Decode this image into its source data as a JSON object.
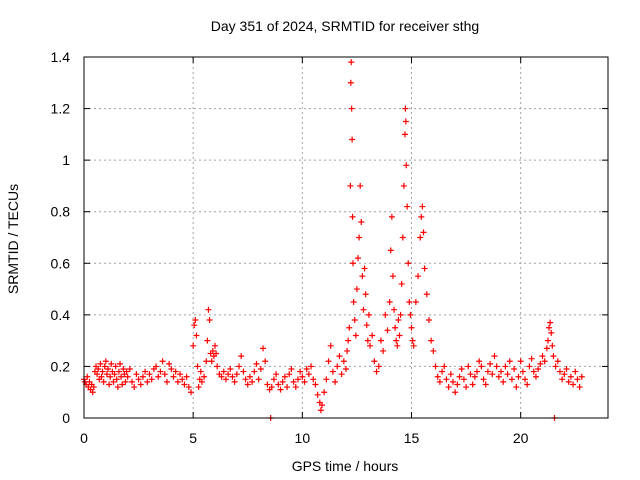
{
  "chart_data": {
    "type": "scatter",
    "title": "Day 351 of 2024, SRMTID for receiver sthg",
    "xlabel": "GPS time / hours",
    "ylabel": "SRMTID / TECUs",
    "xlim": [
      0,
      24
    ],
    "ylim": [
      0,
      1.4
    ],
    "x_ticks": [
      0,
      5,
      10,
      15,
      20
    ],
    "x_tick_labels": [
      "0",
      "5",
      "10",
      "15",
      "20"
    ],
    "y_ticks": [
      0,
      0.2,
      0.4,
      0.6,
      0.8,
      1.0,
      1.2,
      1.4
    ],
    "y_tick_labels": [
      "0",
      "0.2",
      "0.4",
      "0.6",
      "0.8",
      "1",
      "1.2",
      "1.4"
    ],
    "grid": true,
    "marker": "+",
    "series_color": "#ff0000",
    "series": [
      {
        "name": "SRMTID",
        "points": [
          [
            0.0,
            0.15
          ],
          [
            0.05,
            0.14
          ],
          [
            0.1,
            0.13
          ],
          [
            0.15,
            0.16
          ],
          [
            0.2,
            0.12
          ],
          [
            0.25,
            0.14
          ],
          [
            0.3,
            0.11
          ],
          [
            0.35,
            0.13
          ],
          [
            0.4,
            0.1
          ],
          [
            0.45,
            0.12
          ],
          [
            0.5,
            0.18
          ],
          [
            0.55,
            0.2
          ],
          [
            0.6,
            0.17
          ],
          [
            0.65,
            0.19
          ],
          [
            0.7,
            0.15
          ],
          [
            0.75,
            0.21
          ],
          [
            0.8,
            0.16
          ],
          [
            0.85,
            0.18
          ],
          [
            0.9,
            0.14
          ],
          [
            0.95,
            0.2
          ],
          [
            1.0,
            0.22
          ],
          [
            1.05,
            0.17
          ],
          [
            1.1,
            0.19
          ],
          [
            1.15,
            0.13
          ],
          [
            1.2,
            0.16
          ],
          [
            1.25,
            0.21
          ],
          [
            1.3,
            0.18
          ],
          [
            1.35,
            0.14
          ],
          [
            1.4,
            0.17
          ],
          [
            1.45,
            0.2
          ],
          [
            1.5,
            0.15
          ],
          [
            1.55,
            0.12
          ],
          [
            1.6,
            0.18
          ],
          [
            1.65,
            0.21
          ],
          [
            1.7,
            0.16
          ],
          [
            1.75,
            0.13
          ],
          [
            1.8,
            0.19
          ],
          [
            1.85,
            0.17
          ],
          [
            1.9,
            0.14
          ],
          [
            1.95,
            0.18
          ],
          [
            2.0,
            0.16
          ],
          [
            2.1,
            0.19
          ],
          [
            2.2,
            0.14
          ],
          [
            2.3,
            0.12
          ],
          [
            2.4,
            0.17
          ],
          [
            2.5,
            0.15
          ],
          [
            2.6,
            0.13
          ],
          [
            2.7,
            0.16
          ],
          [
            2.8,
            0.18
          ],
          [
            2.9,
            0.14
          ],
          [
            3.0,
            0.17
          ],
          [
            3.1,
            0.15
          ],
          [
            3.2,
            0.19
          ],
          [
            3.3,
            0.2
          ],
          [
            3.4,
            0.16
          ],
          [
            3.5,
            0.18
          ],
          [
            3.6,
            0.22
          ],
          [
            3.7,
            0.17
          ],
          [
            3.8,
            0.14
          ],
          [
            3.9,
            0.21
          ],
          [
            4.0,
            0.19
          ],
          [
            4.1,
            0.16
          ],
          [
            4.2,
            0.18
          ],
          [
            4.3,
            0.14
          ],
          [
            4.4,
            0.17
          ],
          [
            4.5,
            0.15
          ],
          [
            4.6,
            0.13
          ],
          [
            4.7,
            0.16
          ],
          [
            4.8,
            0.12
          ],
          [
            4.9,
            0.1
          ],
          [
            5.0,
            0.28
          ],
          [
            5.05,
            0.36
          ],
          [
            5.1,
            0.38
          ],
          [
            5.15,
            0.32
          ],
          [
            5.2,
            0.2
          ],
          [
            5.25,
            0.12
          ],
          [
            5.3,
            0.15
          ],
          [
            5.35,
            0.18
          ],
          [
            5.4,
            0.14
          ],
          [
            5.5,
            0.16
          ],
          [
            5.6,
            0.22
          ],
          [
            5.65,
            0.3
          ],
          [
            5.7,
            0.42
          ],
          [
            5.75,
            0.38
          ],
          [
            5.8,
            0.25
          ],
          [
            5.85,
            0.22
          ],
          [
            5.9,
            0.26
          ],
          [
            5.95,
            0.24
          ],
          [
            6.0,
            0.28
          ],
          [
            6.05,
            0.25
          ],
          [
            6.1,
            0.2
          ],
          [
            6.2,
            0.17
          ],
          [
            6.3,
            0.16
          ],
          [
            6.4,
            0.18
          ],
          [
            6.5,
            0.15
          ],
          [
            6.6,
            0.17
          ],
          [
            6.7,
            0.19
          ],
          [
            6.8,
            0.16
          ],
          [
            6.9,
            0.14
          ],
          [
            7.0,
            0.17
          ],
          [
            7.1,
            0.2
          ],
          [
            7.2,
            0.24
          ],
          [
            7.3,
            0.18
          ],
          [
            7.4,
            0.15
          ],
          [
            7.5,
            0.13
          ],
          [
            7.6,
            0.16
          ],
          [
            7.7,
            0.14
          ],
          [
            7.8,
            0.18
          ],
          [
            7.9,
            0.21
          ],
          [
            8.0,
            0.15
          ],
          [
            8.1,
            0.19
          ],
          [
            8.2,
            0.27
          ],
          [
            8.3,
            0.22
          ],
          [
            8.4,
            0.13
          ],
          [
            8.5,
            0.11
          ],
          [
            8.55,
            0.0
          ],
          [
            8.6,
            0.12
          ],
          [
            8.7,
            0.15
          ],
          [
            8.8,
            0.17
          ],
          [
            8.9,
            0.13
          ],
          [
            9.0,
            0.11
          ],
          [
            9.1,
            0.14
          ],
          [
            9.2,
            0.16
          ],
          [
            9.3,
            0.12
          ],
          [
            9.4,
            0.17
          ],
          [
            9.5,
            0.19
          ],
          [
            9.6,
            0.14
          ],
          [
            9.7,
            0.12
          ],
          [
            9.8,
            0.15
          ],
          [
            9.9,
            0.18
          ],
          [
            10.0,
            0.16
          ],
          [
            10.1,
            0.14
          ],
          [
            10.2,
            0.19
          ],
          [
            10.3,
            0.17
          ],
          [
            10.4,
            0.2
          ],
          [
            10.5,
            0.15
          ],
          [
            10.6,
            0.13
          ],
          [
            10.7,
            0.09
          ],
          [
            10.8,
            0.06
          ],
          [
            10.85,
            0.03
          ],
          [
            10.9,
            0.05
          ],
          [
            11.0,
            0.1
          ],
          [
            11.1,
            0.15
          ],
          [
            11.2,
            0.22
          ],
          [
            11.3,
            0.28
          ],
          [
            11.4,
            0.18
          ],
          [
            11.5,
            0.14
          ],
          [
            11.6,
            0.2
          ],
          [
            11.7,
            0.24
          ],
          [
            11.8,
            0.17
          ],
          [
            11.9,
            0.22
          ],
          [
            12.0,
            0.19
          ],
          [
            12.05,
            0.26
          ],
          [
            12.1,
            0.3
          ],
          [
            12.15,
            0.35
          ],
          [
            12.2,
            0.9
          ],
          [
            12.22,
            1.3
          ],
          [
            12.24,
            1.38
          ],
          [
            12.26,
            1.2
          ],
          [
            12.28,
            1.08
          ],
          [
            12.3,
            0.78
          ],
          [
            12.32,
            0.6
          ],
          [
            12.35,
            0.45
          ],
          [
            12.4,
            0.38
          ],
          [
            12.45,
            0.32
          ],
          [
            12.5,
            0.5
          ],
          [
            12.55,
            0.62
          ],
          [
            12.6,
            0.7
          ],
          [
            12.65,
            0.9
          ],
          [
            12.7,
            0.76
          ],
          [
            12.75,
            0.55
          ],
          [
            12.8,
            0.42
          ],
          [
            12.85,
            0.58
          ],
          [
            12.9,
            0.48
          ],
          [
            12.95,
            0.36
          ],
          [
            13.0,
            0.3
          ],
          [
            13.05,
            0.4
          ],
          [
            13.1,
            0.28
          ],
          [
            13.2,
            0.32
          ],
          [
            13.3,
            0.22
          ],
          [
            13.4,
            0.18
          ],
          [
            13.5,
            0.2
          ],
          [
            13.6,
            0.3
          ],
          [
            13.7,
            0.26
          ],
          [
            13.8,
            0.4
          ],
          [
            13.9,
            0.34
          ],
          [
            14.0,
            0.45
          ],
          [
            14.05,
            0.65
          ],
          [
            14.1,
            0.78
          ],
          [
            14.15,
            0.55
          ],
          [
            14.2,
            0.42
          ],
          [
            14.25,
            0.35
          ],
          [
            14.3,
            0.3
          ],
          [
            14.35,
            0.28
          ],
          [
            14.4,
            0.38
          ],
          [
            14.45,
            0.32
          ],
          [
            14.5,
            0.4
          ],
          [
            14.55,
            0.52
          ],
          [
            14.6,
            0.7
          ],
          [
            14.65,
            0.9
          ],
          [
            14.7,
            1.1
          ],
          [
            14.72,
            1.2
          ],
          [
            14.74,
            1.15
          ],
          [
            14.76,
            0.98
          ],
          [
            14.8,
            0.82
          ],
          [
            14.85,
            0.6
          ],
          [
            14.9,
            0.45
          ],
          [
            14.95,
            0.4
          ],
          [
            15.0,
            0.35
          ],
          [
            15.05,
            0.3
          ],
          [
            15.1,
            0.28
          ],
          [
            15.2,
            0.45
          ],
          [
            15.3,
            0.55
          ],
          [
            15.4,
            0.7
          ],
          [
            15.45,
            0.78
          ],
          [
            15.5,
            0.82
          ],
          [
            15.55,
            0.72
          ],
          [
            15.6,
            0.58
          ],
          [
            15.7,
            0.48
          ],
          [
            15.8,
            0.38
          ],
          [
            15.9,
            0.3
          ],
          [
            16.0,
            0.26
          ],
          [
            16.1,
            0.2
          ],
          [
            16.2,
            0.16
          ],
          [
            16.3,
            0.14
          ],
          [
            16.4,
            0.18
          ],
          [
            16.5,
            0.2
          ],
          [
            16.6,
            0.15
          ],
          [
            16.7,
            0.12
          ],
          [
            16.8,
            0.17
          ],
          [
            16.9,
            0.14
          ],
          [
            17.0,
            0.1
          ],
          [
            17.1,
            0.13
          ],
          [
            17.2,
            0.16
          ],
          [
            17.3,
            0.19
          ],
          [
            17.4,
            0.15
          ],
          [
            17.5,
            0.12
          ],
          [
            17.6,
            0.2
          ],
          [
            17.7,
            0.17
          ],
          [
            17.8,
            0.13
          ],
          [
            17.9,
            0.16
          ],
          [
            18.0,
            0.18
          ],
          [
            18.1,
            0.22
          ],
          [
            18.2,
            0.2
          ],
          [
            18.3,
            0.15
          ],
          [
            18.4,
            0.13
          ],
          [
            18.5,
            0.18
          ],
          [
            18.6,
            0.21
          ],
          [
            18.7,
            0.17
          ],
          [
            18.8,
            0.24
          ],
          [
            18.9,
            0.2
          ],
          [
            19.0,
            0.16
          ],
          [
            19.1,
            0.18
          ],
          [
            19.2,
            0.14
          ],
          [
            19.3,
            0.2
          ],
          [
            19.4,
            0.17
          ],
          [
            19.5,
            0.22
          ],
          [
            19.6,
            0.15
          ],
          [
            19.7,
            0.19
          ],
          [
            19.8,
            0.12
          ],
          [
            19.9,
            0.16
          ],
          [
            20.0,
            0.22
          ],
          [
            20.1,
            0.18
          ],
          [
            20.2,
            0.15
          ],
          [
            20.3,
            0.13
          ],
          [
            20.4,
            0.2
          ],
          [
            20.5,
            0.23
          ],
          [
            20.6,
            0.18
          ],
          [
            20.7,
            0.16
          ],
          [
            20.8,
            0.19
          ],
          [
            20.9,
            0.21
          ],
          [
            21.0,
            0.24
          ],
          [
            21.1,
            0.22
          ],
          [
            21.2,
            0.27
          ],
          [
            21.25,
            0.3
          ],
          [
            21.3,
            0.35
          ],
          [
            21.35,
            0.37
          ],
          [
            21.4,
            0.33
          ],
          [
            21.45,
            0.28
          ],
          [
            21.5,
            0.24
          ],
          [
            21.55,
            0.0
          ],
          [
            21.6,
            0.2
          ],
          [
            21.7,
            0.22
          ],
          [
            21.8,
            0.18
          ],
          [
            21.9,
            0.15
          ],
          [
            22.0,
            0.17
          ],
          [
            22.1,
            0.19
          ],
          [
            22.2,
            0.14
          ],
          [
            22.3,
            0.16
          ],
          [
            22.4,
            0.13
          ],
          [
            22.5,
            0.18
          ],
          [
            22.6,
            0.15
          ],
          [
            22.7,
            0.12
          ],
          [
            22.8,
            0.16
          ]
        ]
      }
    ]
  }
}
